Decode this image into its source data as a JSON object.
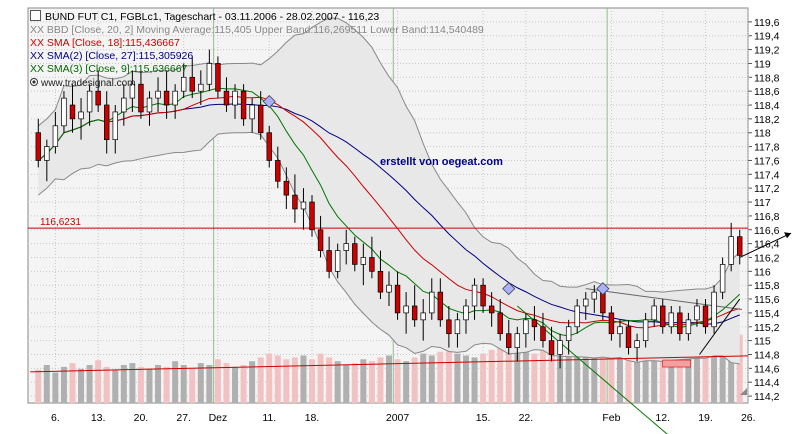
{
  "chart_data": {
    "type": "candlestick",
    "title": "BUND FUT C1, FGBLc1, Tageschart - 03.11.2006 - 28.02.2007 - 116,23",
    "legend": [
      {
        "text": "XX BBD [Close, 20, 2] Moving Average:115,405 Upper Band:116,269511 Lower Band:114,540489",
        "color": "#999999"
      },
      {
        "text": "XX SMA [Close, 18]:115,436667",
        "color": "#cc0000"
      },
      {
        "text": "XX SMA(2) [Close, 27]:115,305926",
        "color": "#000080"
      },
      {
        "text": "XX SMA(3) [Close, 9]:115,636667",
        "color": "#006600"
      }
    ],
    "ylim": [
      114.1,
      119.8
    ],
    "y_ticks": [
      "119,6",
      "119,4",
      "119,2",
      "119",
      "118,8",
      "118,6",
      "118,4",
      "118,2",
      "118",
      "117,8",
      "117,6",
      "117,4",
      "117,2",
      "117",
      "116,8",
      "116,6",
      "116,4",
      "116,2",
      "116",
      "115,8",
      "115,6",
      "115,4",
      "115,2",
      "115",
      "114,8",
      "114,6",
      "114,4",
      "114,2"
    ],
    "x_labels": [
      "6.",
      "13.",
      "20.",
      "27.",
      "Dez",
      "11.",
      "18.",
      "2007",
      "15.",
      "22.",
      "Feb",
      "12.",
      "19.",
      "26."
    ],
    "x_label_positions": [
      2,
      7,
      12,
      17,
      21,
      27,
      32,
      42,
      52,
      57,
      67,
      73,
      78,
      83
    ],
    "horizontal_line": {
      "value": 116.6231,
      "label": "116,6231"
    },
    "ohlc": [
      [
        118.0,
        118.2,
        117.5,
        117.6
      ],
      [
        117.6,
        117.9,
        117.3,
        117.8
      ],
      [
        117.8,
        118.3,
        117.7,
        118.1
      ],
      [
        118.1,
        118.6,
        118.0,
        118.5
      ],
      [
        118.4,
        118.7,
        118.0,
        118.2
      ],
      [
        118.2,
        118.5,
        117.9,
        118.3
      ],
      [
        118.3,
        118.7,
        118.1,
        118.6
      ],
      [
        118.6,
        118.9,
        118.3,
        118.4
      ],
      [
        118.4,
        118.6,
        117.7,
        117.9
      ],
      [
        117.9,
        118.4,
        117.7,
        118.3
      ],
      [
        118.3,
        118.7,
        118.1,
        118.5
      ],
      [
        118.5,
        118.9,
        118.3,
        118.7
      ],
      [
        118.7,
        118.9,
        118.2,
        118.3
      ],
      [
        118.3,
        118.6,
        118.1,
        118.5
      ],
      [
        118.5,
        118.8,
        118.3,
        118.6
      ],
      [
        118.6,
        118.9,
        118.2,
        118.4
      ],
      [
        118.4,
        118.7,
        118.2,
        118.6
      ],
      [
        118.6,
        119.0,
        118.5,
        118.8
      ],
      [
        118.8,
        119.1,
        118.5,
        118.6
      ],
      [
        118.6,
        118.9,
        118.4,
        118.7
      ],
      [
        118.7,
        119.2,
        118.6,
        119.0
      ],
      [
        119.0,
        119.1,
        118.5,
        118.6
      ],
      [
        118.6,
        118.8,
        118.3,
        118.4
      ],
      [
        118.4,
        118.7,
        118.2,
        118.6
      ],
      [
        118.6,
        118.7,
        118.1,
        118.2
      ],
      [
        118.2,
        118.5,
        118.0,
        118.4
      ],
      [
        118.4,
        118.6,
        117.9,
        118.0
      ],
      [
        118.0,
        118.1,
        117.5,
        117.6
      ],
      [
        117.6,
        117.8,
        117.2,
        117.3
      ],
      [
        117.3,
        117.5,
        116.9,
        117.1
      ],
      [
        117.1,
        117.4,
        116.7,
        116.9
      ],
      [
        116.9,
        117.2,
        116.6,
        117.0
      ],
      [
        117.0,
        117.1,
        116.5,
        116.6
      ],
      [
        116.6,
        116.8,
        116.2,
        116.3
      ],
      [
        116.3,
        116.5,
        115.9,
        116.0
      ],
      [
        116.0,
        116.4,
        115.9,
        116.3
      ],
      [
        116.3,
        116.6,
        116.1,
        116.4
      ],
      [
        116.4,
        116.5,
        116.0,
        116.1
      ],
      [
        116.1,
        116.4,
        115.8,
        116.2
      ],
      [
        116.2,
        116.5,
        115.9,
        116.0
      ],
      [
        116.0,
        116.3,
        115.6,
        115.7
      ],
      [
        115.7,
        116.0,
        115.5,
        115.8
      ],
      [
        115.8,
        116.0,
        115.3,
        115.4
      ],
      [
        115.4,
        115.7,
        115.1,
        115.5
      ],
      [
        115.5,
        115.8,
        115.2,
        115.3
      ],
      [
        115.3,
        115.6,
        115.0,
        115.4
      ],
      [
        115.4,
        115.9,
        115.3,
        115.7
      ],
      [
        115.7,
        115.9,
        115.2,
        115.3
      ],
      [
        115.3,
        115.5,
        114.9,
        115.1
      ],
      [
        115.1,
        115.4,
        114.9,
        115.3
      ],
      [
        115.3,
        115.6,
        115.1,
        115.5
      ],
      [
        115.5,
        115.9,
        115.3,
        115.8
      ],
      [
        115.8,
        115.9,
        115.4,
        115.5
      ],
      [
        115.5,
        115.7,
        115.2,
        115.4
      ],
      [
        115.4,
        115.6,
        115.0,
        115.1
      ],
      [
        115.1,
        115.3,
        114.8,
        114.9
      ],
      [
        114.9,
        115.2,
        114.7,
        115.1
      ],
      [
        115.1,
        115.4,
        114.9,
        115.3
      ],
      [
        115.3,
        115.5,
        115.0,
        115.2
      ],
      [
        115.2,
        115.4,
        114.9,
        115.0
      ],
      [
        115.0,
        115.2,
        114.7,
        114.8
      ],
      [
        114.8,
        115.1,
        114.6,
        115.0
      ],
      [
        115.0,
        115.3,
        114.8,
        115.2
      ],
      [
        115.2,
        115.6,
        115.1,
        115.5
      ],
      [
        115.5,
        115.7,
        115.3,
        115.6
      ],
      [
        115.6,
        115.8,
        115.4,
        115.7
      ],
      [
        115.7,
        115.8,
        115.3,
        115.4
      ],
      [
        115.4,
        115.5,
        115.0,
        115.1
      ],
      [
        115.1,
        115.3,
        114.9,
        115.2
      ],
      [
        115.2,
        115.3,
        114.8,
        114.9
      ],
      [
        114.9,
        115.1,
        114.7,
        115.0
      ],
      [
        115.0,
        115.4,
        114.9,
        115.3
      ],
      [
        115.3,
        115.6,
        115.2,
        115.5
      ],
      [
        115.5,
        115.6,
        115.1,
        115.2
      ],
      [
        115.2,
        115.5,
        115.1,
        115.4
      ],
      [
        115.4,
        115.5,
        115.0,
        115.1
      ],
      [
        115.1,
        115.4,
        115.0,
        115.3
      ],
      [
        115.3,
        115.6,
        115.2,
        115.5
      ],
      [
        115.5,
        115.6,
        115.1,
        115.2
      ],
      [
        115.2,
        115.8,
        115.1,
        115.7
      ],
      [
        115.7,
        116.2,
        115.6,
        116.1
      ],
      [
        116.1,
        116.7,
        116.0,
        116.5
      ],
      [
        116.5,
        116.6,
        116.1,
        116.23
      ]
    ],
    "volume": [
      0.35,
      0.4,
      0.32,
      0.38,
      0.42,
      0.36,
      0.4,
      0.45,
      0.38,
      0.35,
      0.4,
      0.42,
      0.38,
      0.36,
      0.4,
      0.38,
      0.44,
      0.4,
      0.36,
      0.42,
      0.4,
      0.46,
      0.42,
      0.38,
      0.4,
      0.44,
      0.48,
      0.52,
      0.5,
      0.46,
      0.48,
      0.5,
      0.46,
      0.52,
      0.48,
      0.44,
      0.4,
      0.42,
      0.46,
      0.44,
      0.48,
      0.5,
      0.46,
      0.44,
      0.48,
      0.52,
      0.5,
      0.54,
      0.56,
      0.52,
      0.5,
      0.48,
      0.52,
      0.56,
      0.58,
      0.6,
      0.56,
      0.54,
      0.52,
      0.56,
      0.6,
      0.64,
      0.58,
      0.56,
      0.54,
      0.58,
      0.62,
      0.6,
      0.58,
      0.62,
      0.6,
      0.58,
      0.56,
      0.6,
      0.58,
      0.62,
      0.6,
      0.58,
      0.56,
      0.64,
      0.7,
      0.74,
      0.72
    ]
  },
  "annotation_text": "erstellt von oegeat.com",
  "watermark_text": "www.tradesignal.com",
  "colors": {
    "up": "#ffffff",
    "down": "#cc0000",
    "sma18": "#cc0000",
    "sma27": "#000080",
    "sma9": "#007700",
    "bands": "#888888",
    "band_fill": "#e8e8e8"
  }
}
